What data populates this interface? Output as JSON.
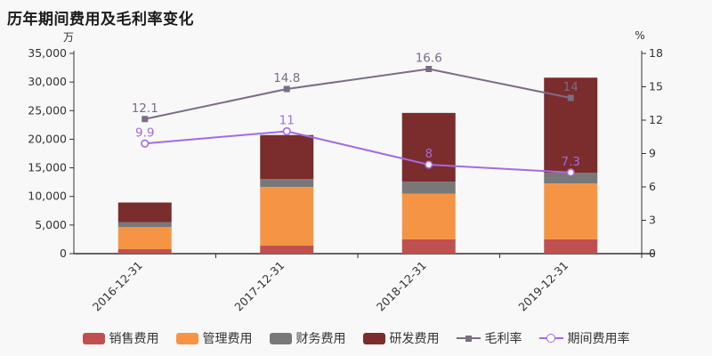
{
  "title": "历年期间费用及毛利率变化",
  "left_axis": {
    "unit": "万",
    "tick_values": [
      0,
      5000,
      10000,
      15000,
      20000,
      25000,
      30000,
      35000
    ],
    "tick_labels": [
      "0",
      "5,000",
      "10,000",
      "15,000",
      "20,000",
      "25,000",
      "30,000",
      "35,000"
    ],
    "max": 35000
  },
  "right_axis": {
    "unit": "%",
    "tick_values": [
      0,
      3,
      6,
      9,
      12,
      15,
      18
    ],
    "tick_labels": [
      "0",
      "3",
      "6",
      "9",
      "12",
      "15",
      "18"
    ],
    "max": 18
  },
  "chart_data": {
    "type": "bar",
    "subtype": "stacked-bar-with-lines",
    "categories": [
      "2016-12-31",
      "2017-12-31",
      "2018-12-31",
      "2019-12-31"
    ],
    "ylim_left": [
      0,
      35000
    ],
    "ylim_right": [
      0,
      18
    ],
    "grid": false,
    "legend_position": "bottom",
    "series": [
      {
        "key": "sales-expense",
        "name": "销售费用",
        "type": "bar",
        "stack": "total",
        "color": "#c05050",
        "values": [
          780,
          1410,
          2510,
          2510
        ]
      },
      {
        "key": "admin-expense",
        "name": "管理费用",
        "type": "bar",
        "stack": "total",
        "color": "#f59445",
        "values": [
          3860,
          10230,
          7990,
          9760
        ]
      },
      {
        "key": "finance-expense",
        "name": "财务费用",
        "type": "bar",
        "stack": "total",
        "color": "#787878",
        "values": [
          850,
          1410,
          2080,
          1880
        ]
      },
      {
        "key": "rd-expense",
        "name": "研发费用",
        "type": "bar",
        "stack": "total",
        "color": "#7b2c2c",
        "values": [
          3450,
          7680,
          12020,
          16610
        ]
      },
      {
        "key": "gross-margin",
        "name": "毛利率",
        "type": "line",
        "axis": "right",
        "marker": "square",
        "color": "#7b6d85",
        "values": [
          12.1,
          14.8,
          16.6,
          14
        ],
        "labels": [
          "12.1",
          "14.8",
          "16.6",
          "14"
        ]
      },
      {
        "key": "period-expense-ratio",
        "name": "期间费用率",
        "type": "line",
        "axis": "right",
        "marker": "circle",
        "color": "#a46be0",
        "values": [
          9.9,
          11,
          8,
          7.3
        ],
        "labels": [
          "9.9",
          "11",
          "8",
          "7.3"
        ]
      }
    ]
  },
  "colors": {
    "background": "#f8f8f8",
    "axis": "#333333",
    "title_text": "#1a1a1a",
    "legend_text": "#333333"
  }
}
